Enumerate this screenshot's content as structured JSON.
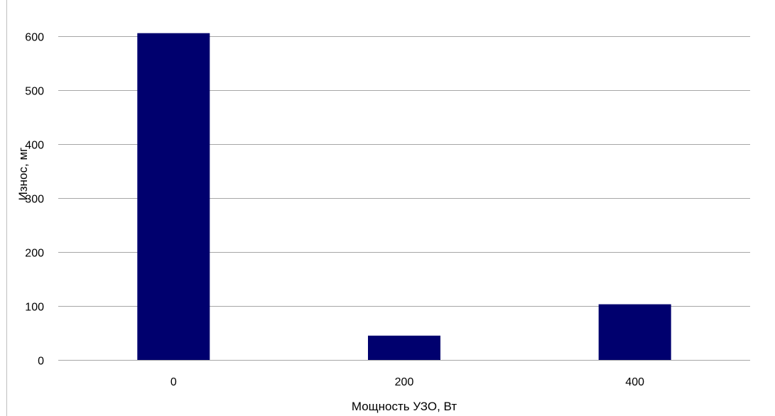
{
  "chart_data": {
    "type": "bar",
    "title": "",
    "categories": [
      "0",
      "200",
      "400"
    ],
    "series": [
      {
        "values": [
          605,
          45,
          103
        ]
      }
    ],
    "xlabel": "Мощность УЗО, Вт",
    "ylabel": "Износ, мг",
    "ylim": [
      0,
      650
    ],
    "yticks": [
      0,
      100,
      200,
      300,
      400,
      500,
      600
    ],
    "grid": true,
    "legend": "none",
    "bar_color": "#00006e",
    "grid_color": "#a6a6a6"
  }
}
